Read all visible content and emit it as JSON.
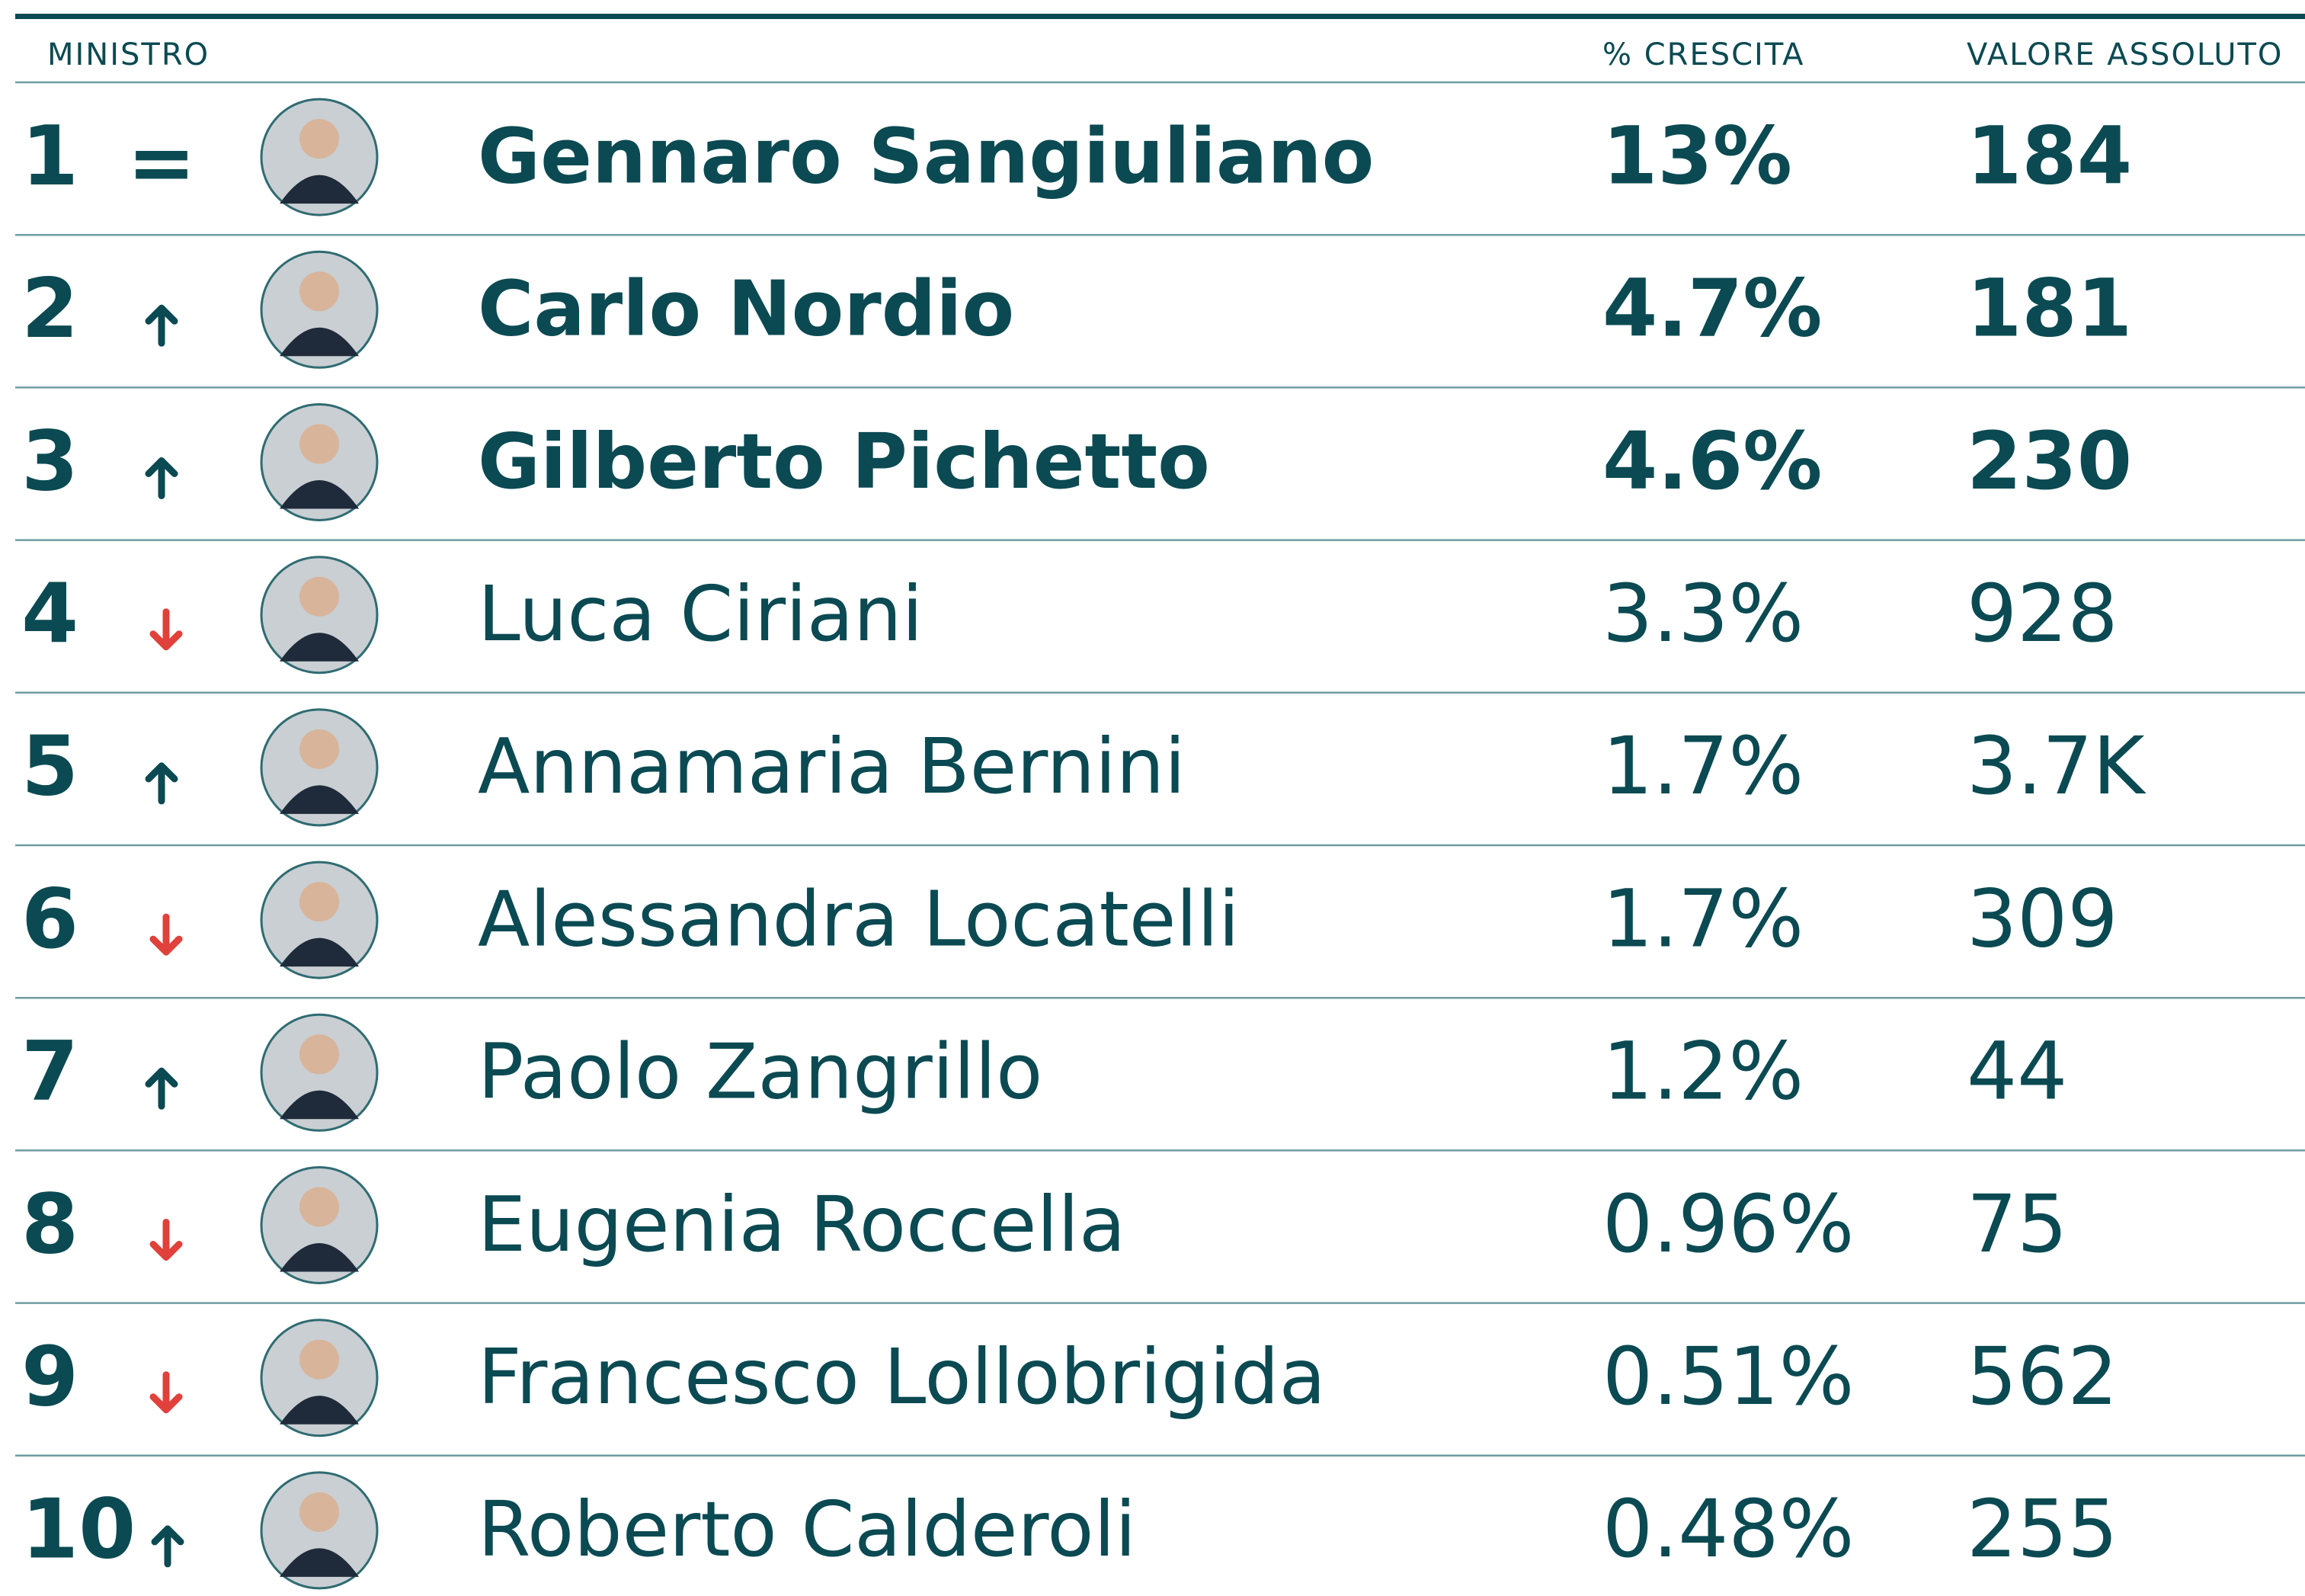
{
  "table": {
    "header": [
      "MINISTRO",
      "% CRESCITA",
      "VALORE ASSOLUTO"
    ],
    "rows": [
      {
        "rank": "1",
        "trend": "=",
        "name": "Gennaro Sangiuliano",
        "growth": "13%",
        "value": "184"
      },
      {
        "rank": "2",
        "name": "Carlo Nordio",
        "growth": "4.7%",
        "value": "181"
      },
      {
        "rank": "3",
        "name": "Gilberto Pichetto",
        "growth": "4.6%",
        "value": "230"
      },
      {
        "rank": "4",
        "name": "Luca Ciriani",
        "growth": "3.3%",
        "value": "928"
      },
      {
        "rank": "5",
        "name": "Annamaria Bernini",
        "growth": "1.7%",
        "value": "3.7K"
      },
      {
        "rank": "6",
        "name": "Alessandra Locatelli",
        "growth": "1.7%",
        "value": "309"
      },
      {
        "rank": "7",
        "name": "Paolo Zangrillo",
        "growth": "1.2%",
        "value": "44"
      },
      {
        "rank": "8",
        "name": "Eugenia Roccella",
        "growth": "0.96%",
        "value": "75"
      },
      {
        "rank": "9",
        "name": "Francesco Lollobrigida",
        "growth": "0.51%",
        "value": "562"
      },
      {
        "rank": "10",
        "name": "Roberto Calderoli",
        "growth": "0.48%",
        "value": "255"
      }
    ]
  }
}
